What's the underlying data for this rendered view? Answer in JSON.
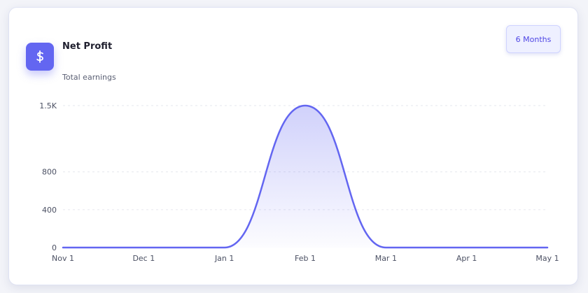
{
  "card": {
    "title": "Net Profit",
    "subtitle": "Total earnings",
    "range_button_label": "6 Months",
    "icon": "dollar-icon"
  },
  "colors": {
    "accent": "#6366f1",
    "grid": "#e6e7ee",
    "axis_text": "#4b5063"
  },
  "chart_data": {
    "type": "area",
    "title": "Net Profit",
    "subtitle": "Total earnings",
    "xlabel": "",
    "ylabel": "",
    "x_ticks": [
      "Nov 1",
      "Dec 1",
      "Jan 1",
      "Feb 1",
      "Mar 1",
      "Apr 1",
      "May 1"
    ],
    "y_ticks": [
      {
        "value": 0,
        "label": "0"
      },
      {
        "value": 400,
        "label": "400"
      },
      {
        "value": 800,
        "label": "800"
      },
      {
        "value": 1500,
        "label": "1.5K"
      }
    ],
    "ylim": [
      0,
      1500
    ],
    "grid": true,
    "legend": "none",
    "series": [
      {
        "x": [
          "Nov 1",
          "Dec 1",
          "Jan 1",
          "Feb 1",
          "Mar 1",
          "Apr 1",
          "May 1"
        ],
        "values": [
          0,
          0,
          0,
          1500,
          0,
          0,
          0
        ]
      }
    ]
  }
}
